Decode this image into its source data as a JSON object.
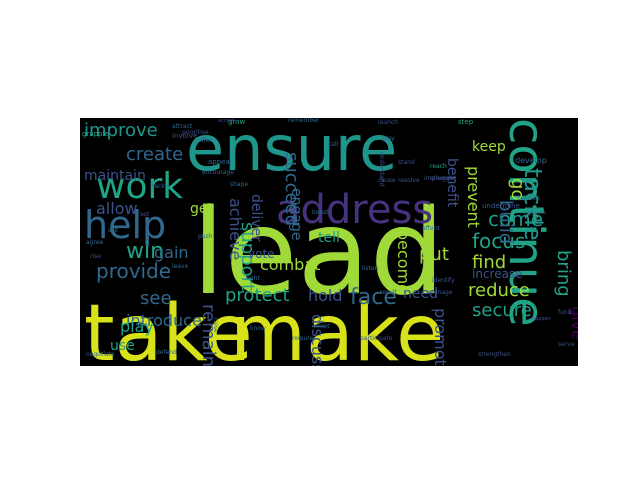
{
  "palette": {
    "background": "#000000",
    "yellow": "#d8e219",
    "lime": "#a0da39",
    "green": "#4ac16d",
    "teal": "#20a386",
    "cyan": "#1f968b",
    "blue": "#31688e",
    "indigo": "#3b528b",
    "purple": "#46327e",
    "dark": "#440154"
  },
  "words": [
    {
      "text": "lead",
      "color": "lime"
    },
    {
      "text": "take",
      "color": "yellow"
    },
    {
      "text": "make",
      "color": "yellow"
    },
    {
      "text": "ensure",
      "color": "cyan"
    },
    {
      "text": "continue",
      "color": "teal"
    },
    {
      "text": "address",
      "color": "purple"
    },
    {
      "text": "help",
      "color": "blue"
    },
    {
      "text": "work",
      "color": "teal"
    },
    {
      "text": "improve",
      "color": "cyan"
    },
    {
      "text": "create",
      "color": "blue"
    },
    {
      "text": "maintain",
      "color": "indigo"
    },
    {
      "text": "allow",
      "color": "indigo"
    },
    {
      "text": "win",
      "color": "teal"
    },
    {
      "text": "provide",
      "color": "blue"
    },
    {
      "text": "see",
      "color": "blue"
    },
    {
      "text": "protect",
      "color": "teal"
    },
    {
      "text": "hold",
      "color": "indigo"
    },
    {
      "text": "face",
      "color": "blue"
    },
    {
      "text": "reduce",
      "color": "lime"
    },
    {
      "text": "secure",
      "color": "teal"
    },
    {
      "text": "tackle",
      "color": "cyan"
    },
    {
      "text": "come",
      "color": "cyan"
    },
    {
      "text": "focus",
      "color": "teal"
    },
    {
      "text": "find",
      "color": "lime"
    },
    {
      "text": "increase",
      "color": "indigo"
    },
    {
      "text": "bring",
      "color": "teal"
    },
    {
      "text": "build",
      "color": "blue"
    },
    {
      "text": "prevent",
      "color": "lime"
    },
    {
      "text": "benefit",
      "color": "indigo"
    },
    {
      "text": "keep",
      "color": "lime"
    },
    {
      "text": "go",
      "color": "lime"
    },
    {
      "text": "achieve",
      "color": "indigo"
    },
    {
      "text": "support",
      "color": "teal"
    },
    {
      "text": "deliver",
      "color": "indigo"
    },
    {
      "text": "engage",
      "color": "blue"
    },
    {
      "text": "succeed",
      "color": "blue"
    },
    {
      "text": "vote",
      "color": "indigo"
    },
    {
      "text": "get",
      "color": "lime"
    },
    {
      "text": "gain",
      "color": "blue"
    },
    {
      "text": "introduce",
      "color": "blue"
    },
    {
      "text": "play",
      "color": "teal"
    },
    {
      "text": "use",
      "color": "teal"
    },
    {
      "text": "remain",
      "color": "indigo"
    },
    {
      "text": "discuss",
      "color": "indigo"
    },
    {
      "text": "promote",
      "color": "indigo"
    },
    {
      "text": "put",
      "color": "lime"
    },
    {
      "text": "become",
      "color": "lime"
    },
    {
      "text": "need",
      "color": "indigo"
    },
    {
      "text": "combat",
      "color": "lime"
    },
    {
      "text": "tell",
      "color": "teal"
    },
    {
      "text": "give",
      "color": "dark"
    },
    {
      "text": "develop",
      "color": "blue"
    },
    {
      "text": "remember",
      "color": "blue"
    },
    {
      "text": "launch",
      "color": "indigo"
    },
    {
      "text": "step",
      "color": "teal"
    },
    {
      "text": "call",
      "color": "blue"
    },
    {
      "text": "offer",
      "color": "blue"
    },
    {
      "text": "grapple",
      "color": "teal"
    },
    {
      "text": "involve",
      "color": "indigo"
    },
    {
      "text": "attract",
      "color": "blue"
    },
    {
      "text": "grow",
      "color": "teal"
    },
    {
      "text": "appeal",
      "color": "blue"
    },
    {
      "text": "stay",
      "color": "blue"
    },
    {
      "text": "understand",
      "color": "indigo"
    },
    {
      "text": "undermine",
      "color": "indigo"
    },
    {
      "text": "struggle",
      "color": "indigo"
    },
    {
      "text": "receive",
      "color": "blue"
    },
    {
      "text": "compete",
      "color": "blue"
    },
    {
      "text": "shape",
      "color": "blue"
    },
    {
      "text": "boost",
      "color": "blue"
    },
    {
      "text": "listen",
      "color": "blue"
    },
    {
      "text": "afford",
      "color": "blue"
    },
    {
      "text": "stand",
      "color": "indigo"
    },
    {
      "text": "reach",
      "color": "teal"
    },
    {
      "text": "implement",
      "color": "indigo"
    },
    {
      "text": "fight",
      "color": "blue"
    },
    {
      "text": "identify",
      "color": "indigo"
    },
    {
      "text": "require",
      "color": "blue"
    },
    {
      "text": "participate",
      "color": "indigo"
    },
    {
      "text": "negotiate",
      "color": "blue"
    },
    {
      "text": "strengthen",
      "color": "indigo"
    },
    {
      "text": "defend",
      "color": "blue"
    },
    {
      "text": "raise",
      "color": "blue"
    },
    {
      "text": "tackle",
      "color": "blue"
    },
    {
      "text": "rise",
      "color": "indigo"
    },
    {
      "text": "agree",
      "color": "blue"
    },
    {
      "text": "ask",
      "color": "blue"
    },
    {
      "text": "accept",
      "color": "indigo"
    },
    {
      "text": "set",
      "color": "indigo"
    },
    {
      "text": "prioritise",
      "color": "indigo"
    },
    {
      "text": "encourage",
      "color": "blue"
    },
    {
      "text": "cause",
      "color": "indigo"
    },
    {
      "text": "resolve",
      "color": "indigo"
    },
    {
      "text": "push",
      "color": "blue"
    },
    {
      "text": "happen",
      "color": "indigo"
    },
    {
      "text": "leave",
      "color": "blue"
    },
    {
      "text": "fund",
      "color": "indigo"
    },
    {
      "text": "serve",
      "color": "indigo"
    },
    {
      "text": "know",
      "color": "blue"
    },
    {
      "text": "result",
      "color": "blue"
    },
    {
      "text": "meet",
      "color": "blue"
    },
    {
      "text": "manage",
      "color": "indigo"
    }
  ]
}
